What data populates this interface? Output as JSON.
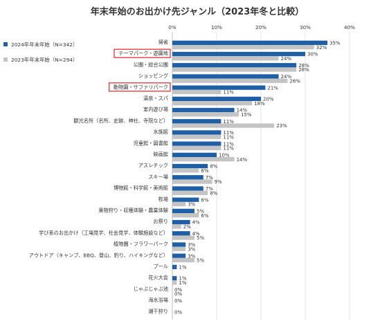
{
  "chart_data": {
    "type": "bar",
    "orientation": "horizontal",
    "title": "年末年始のお出かけ先ジャンル（2023年冬と比較）",
    "xlim": [
      0,
      40
    ],
    "xticks": [
      "0%",
      "10%",
      "20%",
      "30%",
      "40%"
    ],
    "grid": true,
    "legend_position": "top-left",
    "categories": [
      "帰省",
      "テーマパーク・遊園地",
      "公園・総合公園",
      "ショッピング",
      "動物園・サファリパーク",
      "温泉・スパ",
      "室内遊び場",
      "観光名所（名所、史跡、神社、寺院など）",
      "水族館",
      "児童館・図書館",
      "映画館",
      "アスレチック",
      "スキー場",
      "博物館・科学館・美術館",
      "牧場",
      "果物狩り・収穫体験・農業体験",
      "お祭り",
      "学び系のお出かけ（工場見学、社会見学、体験施設など）",
      "植物園・フラワーパーク",
      "アウトドア（キャンプ、BBQ、登山、釣り、ハイキングなど）",
      "プール",
      "花火大会",
      "じゃぶじゃぶ池",
      "海水浴場",
      "潮干狩り"
    ],
    "highlighted_categories": [
      "テーマパーク・遊園地",
      "動物園・サファリパーク"
    ],
    "series": [
      {
        "name": "2024年年末年始（N=342）",
        "color": "#1f5fa6",
        "values": [
          35,
          30,
          28,
          24,
          21,
          20,
          14,
          11,
          11,
          11,
          10,
          8,
          7,
          7,
          6,
          5,
          4,
          4,
          3,
          3,
          1,
          1,
          0,
          0,
          0
        ],
        "labels": [
          "35%",
          "30%",
          "28%",
          "24%",
          "21%",
          "20%",
          "14%",
          "11%",
          "11%",
          "11%",
          "10%",
          "8%",
          "7%",
          "7%",
          "6%",
          "5%",
          "4%",
          "4%",
          "3%",
          "3%",
          "1%",
          "1%",
          "0%",
          "0%",
          "0%"
        ]
      },
      {
        "name": "2023年年末年始（N=294）",
        "color": "#c4c4c4",
        "values": [
          32,
          24,
          28,
          26,
          11,
          18,
          15,
          23,
          11,
          11,
          14,
          6,
          9,
          8,
          3,
          6,
          2,
          5,
          3,
          5,
          null,
          1,
          0,
          null,
          null
        ],
        "labels": [
          "32%",
          "24%",
          "28%",
          "26%",
          "11%",
          "18%",
          "15%",
          "23%",
          "11%",
          "11%",
          "14%",
          "6%",
          "9%",
          "8%",
          "3%",
          "6%",
          "2%",
          "5%",
          "3%",
          "5%",
          "",
          "1%",
          "0%",
          "",
          ""
        ]
      }
    ]
  }
}
